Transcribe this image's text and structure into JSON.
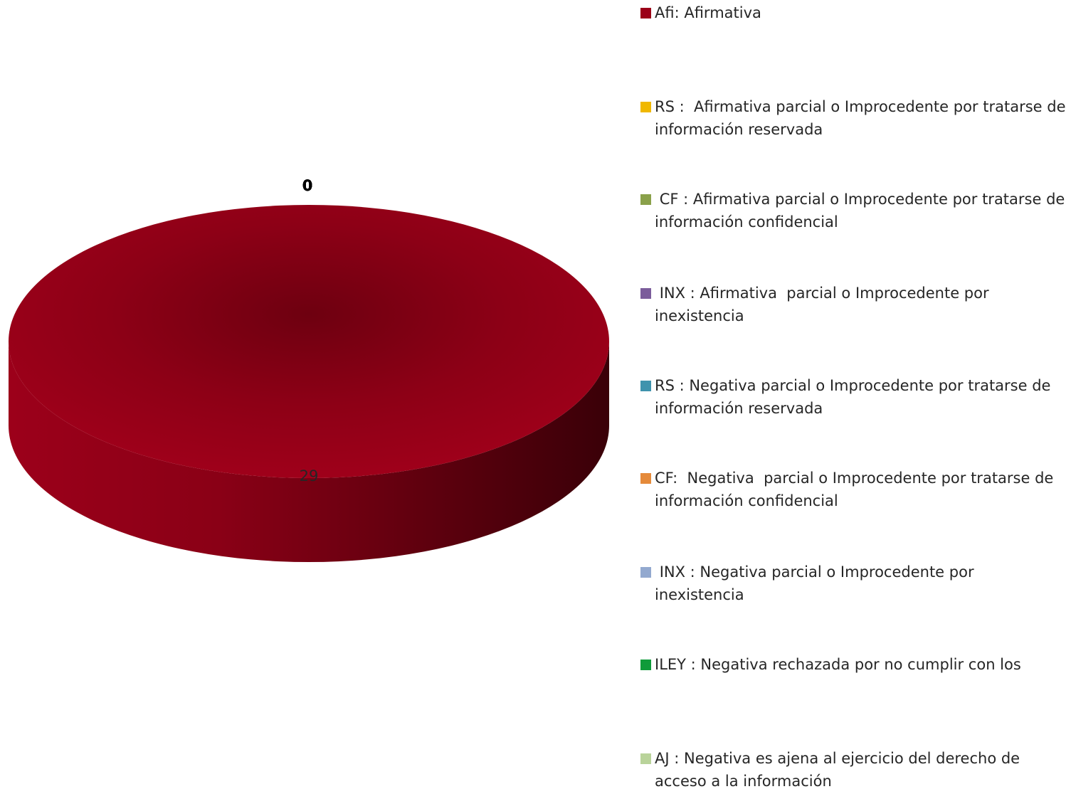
{
  "chart_data": {
    "type": "pie",
    "categories": [
      "Afi: Afirmativa",
      "RS :  Afirmativa parcial o Improcedente por tratarse de información reservada",
      " CF : Afirmativa parcial o Improcedente por tratarse de información confidencial",
      " INX : Afirmativa  parcial o Improcedente por inexistencia",
      "RS : Negativa parcial o Improcedente por tratarse de información reservada",
      "CF:  Negativa  parcial o Improcedente por tratarse de información confidencial",
      " INX : Negativa parcial o Improcedente por inexistencia",
      "ILEY : Negativa rechazada por no cumplir con los",
      "AJ : Negativa es ajena al ejercicio del derecho de acceso a la información"
    ],
    "values": [
      29,
      0,
      0,
      0,
      0,
      0,
      0,
      0,
      0
    ],
    "data_labels": [
      "29",
      "0",
      "0",
      "0",
      "0",
      "0",
      "0",
      "0",
      "0"
    ],
    "colors": [
      "#9b0018",
      "#f0b800",
      "#8aa14a",
      "#7b5c9b",
      "#3f93ad",
      "#e58a3a",
      "#93a9cf",
      "#0f9b3a",
      "#b9d39a"
    ],
    "legend_position": "right",
    "style": "3d"
  }
}
